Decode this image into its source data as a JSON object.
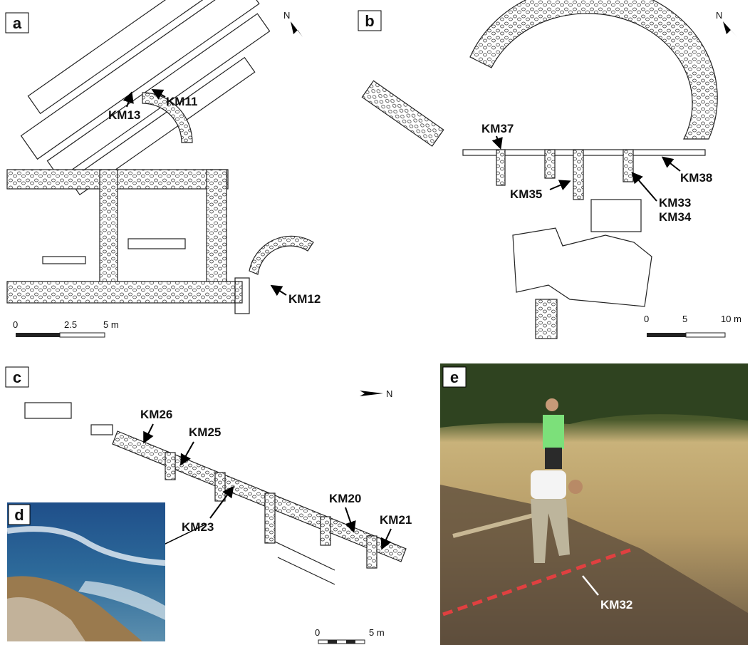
{
  "panels": {
    "a": {
      "label": "a",
      "north": "N",
      "samples": [
        "KM13",
        "KM11",
        "KM12"
      ],
      "scale": [
        "0",
        "2.5",
        "5 m"
      ]
    },
    "b": {
      "label": "b",
      "north": "N",
      "samples": [
        "KM37",
        "KM38",
        "KM35",
        "KM33",
        "KM34"
      ],
      "scale": [
        "0",
        "5",
        "10 m"
      ]
    },
    "c": {
      "label": "c",
      "north": "N",
      "samples": [
        "KM26",
        "KM25",
        "KM23",
        "KM20",
        "KM21"
      ],
      "scale": [
        "0",
        "5 m"
      ]
    },
    "d": {
      "label": "d"
    },
    "e": {
      "label": "e",
      "samples": [
        "KM32"
      ]
    }
  }
}
